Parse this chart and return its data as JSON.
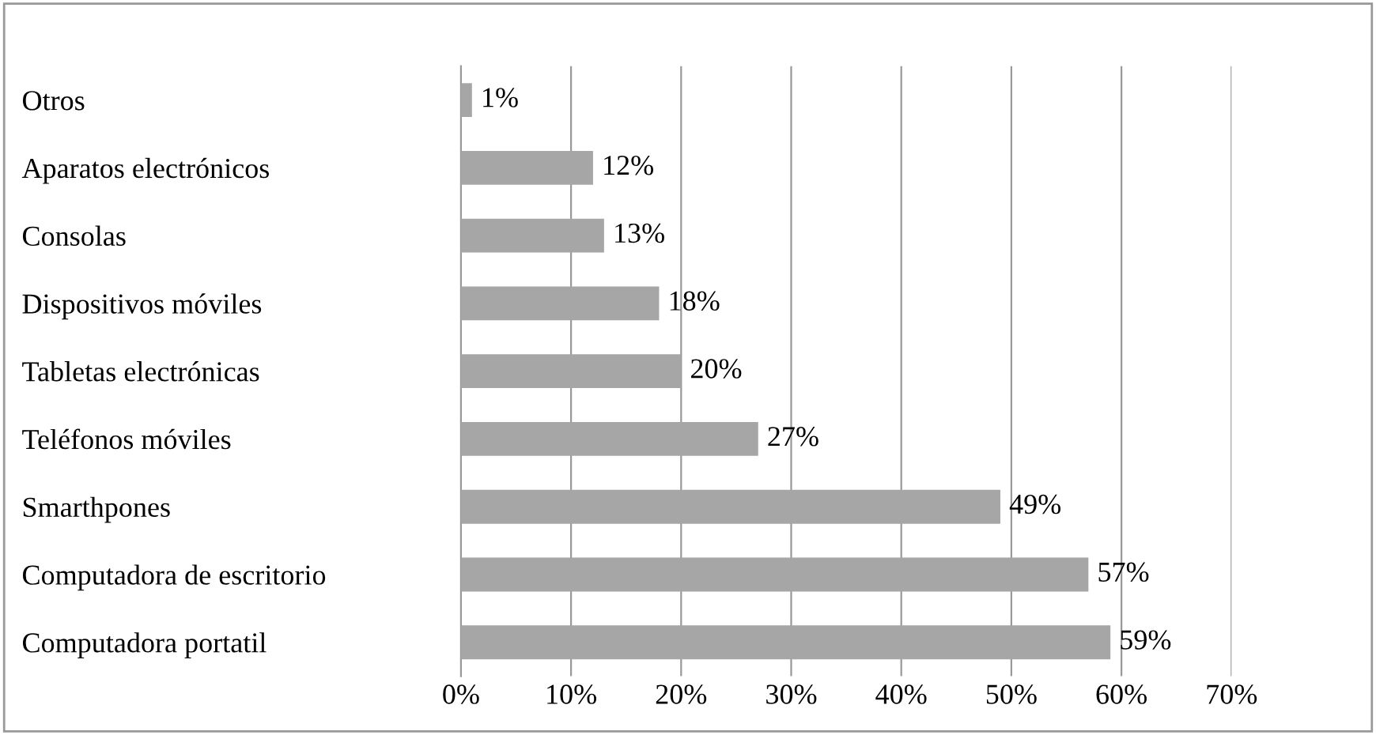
{
  "chart_data": {
    "type": "bar",
    "orientation": "horizontal",
    "categories": [
      "Otros",
      "Aparatos electrónicos",
      "Consolas",
      "Dispositivos móviles",
      "Tabletas electrónicas",
      "Teléfonos móviles",
      "Smarthpones",
      "Computadora de escritorio",
      "Computadora portatil"
    ],
    "values": [
      1,
      12,
      13,
      18,
      20,
      27,
      49,
      57,
      59
    ],
    "value_labels": [
      "1%",
      "12%",
      "13%",
      "18%",
      "20%",
      "27%",
      "49%",
      "57%",
      "59%"
    ],
    "color": "#a6a6a6",
    "xlim": [
      0,
      70
    ],
    "xticks": [
      {
        "value": 0,
        "label": "0%"
      },
      {
        "value": 10,
        "label": "10%"
      },
      {
        "value": 20,
        "label": "20%"
      },
      {
        "value": 30,
        "label": "30%"
      },
      {
        "value": 40,
        "label": "40%"
      },
      {
        "value": 50,
        "label": "50%"
      },
      {
        "value": 60,
        "label": "60%"
      },
      {
        "value": 70,
        "label": "70%"
      }
    ],
    "grid": "x"
  }
}
